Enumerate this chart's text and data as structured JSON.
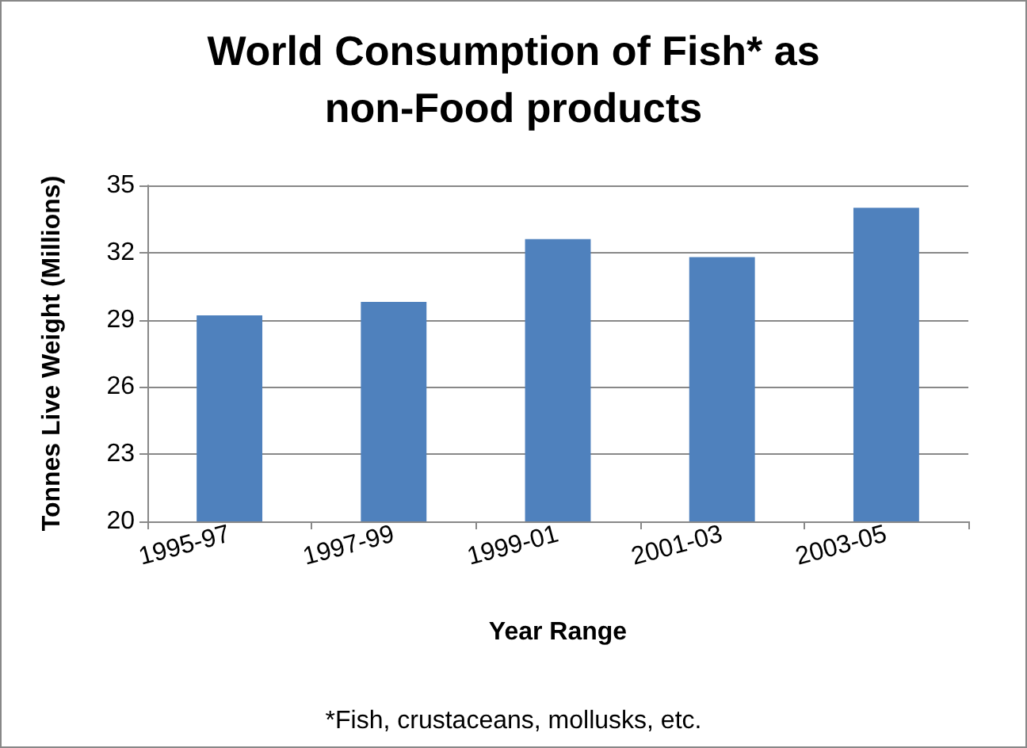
{
  "chart_data": {
    "type": "bar",
    "title": "World Consumption of Fish* as\nnon-Food products",
    "xlabel": "Year Range",
    "ylabel": "Tonnes Live Weight (Millions)",
    "categories": [
      "1995-97",
      "1997-99",
      "1999-01",
      "2001-03",
      "2003-05"
    ],
    "values": [
      29.2,
      29.8,
      32.6,
      31.8,
      34.0
    ],
    "color": "#4f81bd",
    "ylim": [
      20,
      35
    ],
    "yticks": [
      20,
      23,
      26,
      29,
      32,
      35
    ],
    "grid": "y",
    "annotations": [
      "*Fish, crustaceans, mollusks, etc."
    ]
  }
}
